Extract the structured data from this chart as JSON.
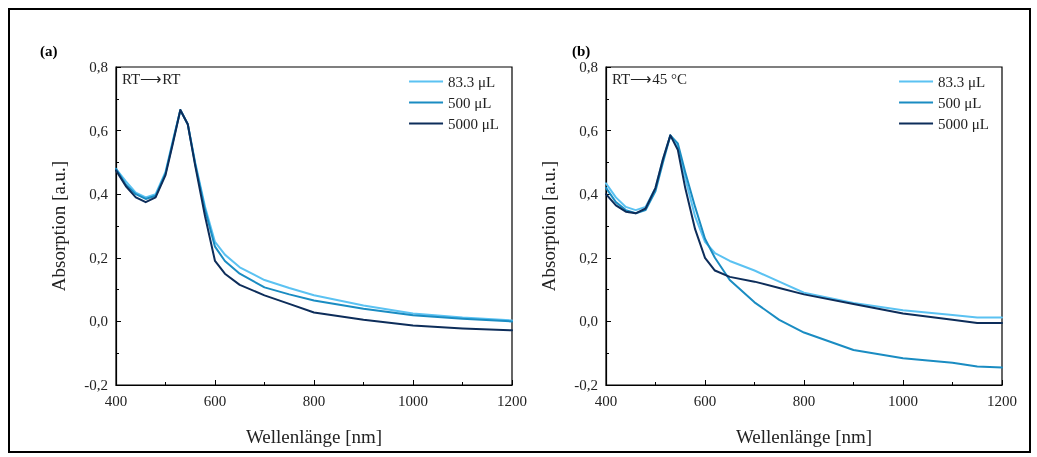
{
  "chart_data": [
    {
      "type": "line",
      "title": "(a)",
      "xlabel": "Wellenlänge [nm]",
      "ylabel": "Absorption [a.u.]",
      "annotations": [
        "RT⟶RT"
      ],
      "xlim": [
        400,
        1200
      ],
      "xticks": [
        400,
        600,
        800,
        1000,
        1200
      ],
      "ylim": [
        -0.2,
        0.8
      ],
      "yticks": [
        {
          "value": -0.2,
          "label": "-0,2"
        },
        {
          "value": 0,
          "label": "0,0"
        },
        {
          "value": 0.2,
          "label": "0,2"
        },
        {
          "value": 0.4,
          "label": "0,4"
        },
        {
          "value": 0.6,
          "label": "0,6"
        },
        {
          "value": 0.8,
          "label": "0,8"
        }
      ],
      "grid": false,
      "legend": "top right",
      "marker": "none",
      "line_style": "solid",
      "x": [
        400,
        420,
        440,
        460,
        480,
        500,
        515,
        530,
        545,
        560,
        580,
        600,
        620,
        650,
        700,
        750,
        800,
        900,
        1000,
        1100,
        1200
      ],
      "series": [
        {
          "name": "83.3 μL",
          "color": "#5bc2f2",
          "values": [
            0.48,
            0.44,
            0.405,
            0.39,
            0.4,
            0.47,
            0.57,
            0.665,
            0.62,
            0.5,
            0.36,
            0.25,
            0.21,
            0.17,
            0.13,
            0.105,
            0.082,
            0.05,
            0.025,
            0.012,
            0.003
          ]
        },
        {
          "name": "500 μL",
          "color": "#1a8cc2",
          "values": [
            0.48,
            0.43,
            0.4,
            0.385,
            0.395,
            0.465,
            0.565,
            0.665,
            0.62,
            0.495,
            0.35,
            0.235,
            0.19,
            0.15,
            0.107,
            0.085,
            0.066,
            0.04,
            0.019,
            0.008,
            0.0
          ]
        },
        {
          "name": "5000 μL",
          "color": "#0d2d5a",
          "values": [
            0.475,
            0.425,
            0.39,
            0.375,
            0.39,
            0.46,
            0.56,
            0.665,
            0.62,
            0.49,
            0.33,
            0.19,
            0.15,
            0.115,
            0.082,
            0.055,
            0.028,
            0.005,
            -0.013,
            -0.022,
            -0.028
          ]
        }
      ]
    },
    {
      "type": "line",
      "title": "(b)",
      "xlabel": "Wellenlänge [nm]",
      "ylabel": "Absorption [a.u.]",
      "annotations": [
        "RT⟶45 °C"
      ],
      "xlim": [
        400,
        1200
      ],
      "xticks": [
        400,
        600,
        800,
        1000,
        1200
      ],
      "ylim": [
        -0.2,
        0.8
      ],
      "yticks": [
        {
          "value": -0.2,
          "label": "-0,2"
        },
        {
          "value": 0,
          "label": "0,0"
        },
        {
          "value": 0.2,
          "label": "0,2"
        },
        {
          "value": 0.4,
          "label": "0,4"
        },
        {
          "value": 0.6,
          "label": "0,6"
        },
        {
          "value": 0.8,
          "label": "0,8"
        }
      ],
      "grid": false,
      "legend": "top right",
      "marker": "none",
      "line_style": "solid",
      "x": [
        400,
        420,
        440,
        460,
        480,
        500,
        515,
        530,
        545,
        560,
        580,
        600,
        620,
        650,
        700,
        750,
        800,
        900,
        1000,
        1100,
        1150,
        1200
      ],
      "series": [
        {
          "name": "83.3 μL",
          "color": "#5bc2f2",
          "values": [
            0.434,
            0.39,
            0.36,
            0.35,
            0.36,
            0.42,
            0.51,
            0.585,
            0.55,
            0.45,
            0.33,
            0.25,
            0.215,
            0.19,
            0.16,
            0.125,
            0.09,
            0.058,
            0.035,
            0.02,
            0.012,
            0.012
          ]
        },
        {
          "name": "500 μL",
          "color": "#1a8cc2",
          "values": [
            0.42,
            0.375,
            0.35,
            0.34,
            0.35,
            0.41,
            0.5,
            0.585,
            0.56,
            0.47,
            0.36,
            0.26,
            0.2,
            0.13,
            0.06,
            0.005,
            -0.035,
            -0.09,
            -0.116,
            -0.13,
            -0.142,
            -0.145
          ]
        },
        {
          "name": "5000 μL",
          "color": "#0d2d5a",
          "values": [
            0.4,
            0.365,
            0.345,
            0.34,
            0.355,
            0.42,
            0.51,
            0.585,
            0.54,
            0.42,
            0.29,
            0.2,
            0.16,
            0.14,
            0.125,
            0.105,
            0.085,
            0.055,
            0.025,
            0.005,
            -0.005,
            -0.005
          ]
        }
      ]
    }
  ]
}
